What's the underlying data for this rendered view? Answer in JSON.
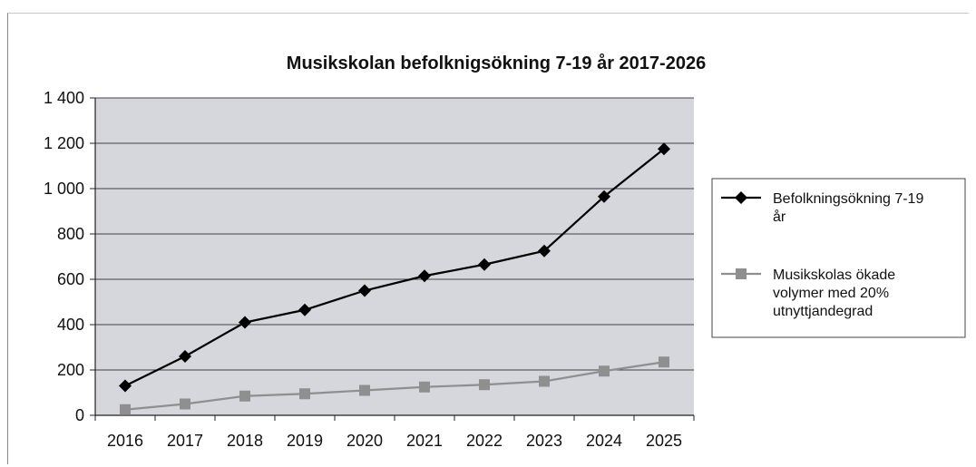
{
  "chart_data": {
    "type": "line",
    "title": "Musikskolan befolknigsökning 7-19 år  2017-2026",
    "xlabel": "",
    "ylabel": "",
    "categories": [
      "2016",
      "2017",
      "2018",
      "2019",
      "2020",
      "2021",
      "2022",
      "2023",
      "2024",
      "2025"
    ],
    "ylim": [
      0,
      1400
    ],
    "yticks": [
      0,
      200,
      400,
      600,
      800,
      1000,
      1200,
      1400
    ],
    "ytick_labels": [
      "0",
      "200",
      "400",
      "600",
      "800",
      "1 000",
      "1 200",
      "1 400"
    ],
    "grid": true,
    "legend_position": "right",
    "series": [
      {
        "name_lines": [
          "Befolkningsökning 7-19",
          "år"
        ],
        "marker": "diamond",
        "color": "#000000",
        "values": [
          130,
          260,
          410,
          465,
          550,
          615,
          665,
          725,
          965,
          1175
        ]
      },
      {
        "name_lines": [
          "Musikskolas ökade",
          "volymer med 20%",
          "utnyttjandegrad"
        ],
        "marker": "square",
        "color": "#8f8f8f",
        "values": [
          25,
          50,
          85,
          95,
          110,
          125,
          135,
          150,
          195,
          235
        ]
      }
    ],
    "plot_background": "#d6d6dd"
  }
}
